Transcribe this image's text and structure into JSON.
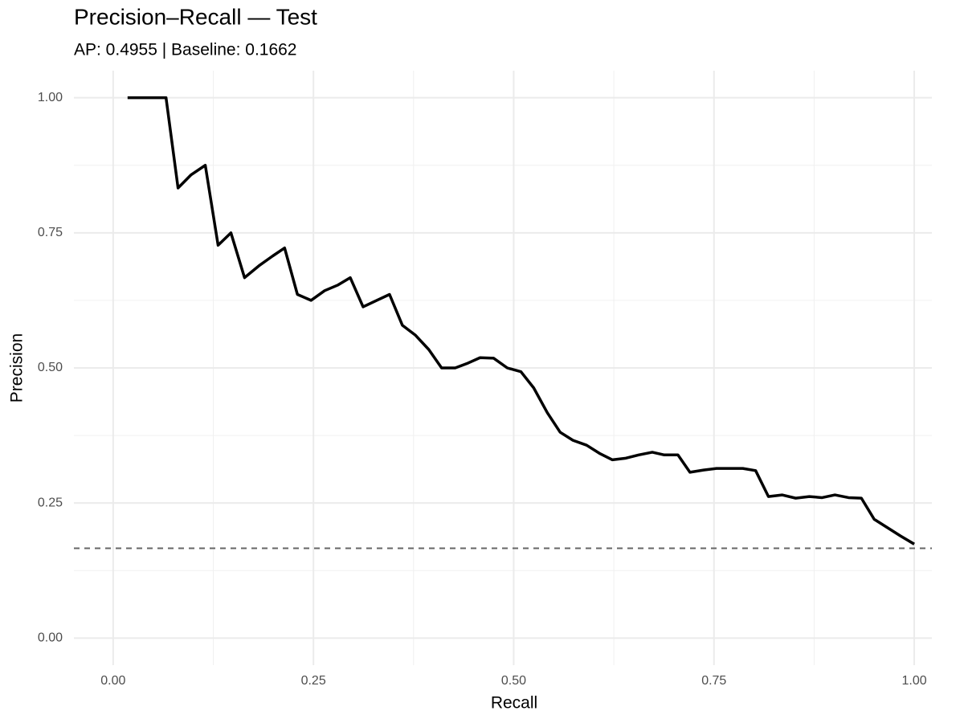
{
  "chart_data": {
    "type": "line",
    "title": "Precision–Recall — Test",
    "subtitle": "AP: 0.4955 | Baseline: 0.1662",
    "x_label": "Recall",
    "y_label": "Precision",
    "x": [
      0.018,
      0.066,
      0.081,
      0.097,
      0.115,
      0.131,
      0.147,
      0.164,
      0.182,
      0.199,
      0.214,
      0.23,
      0.247,
      0.264,
      0.28,
      0.296,
      0.312,
      0.329,
      0.345,
      0.361,
      0.377,
      0.394,
      0.41,
      0.427,
      0.443,
      0.458,
      0.475,
      0.492,
      0.509,
      0.525,
      0.542,
      0.558,
      0.574,
      0.591,
      0.607,
      0.623,
      0.64,
      0.656,
      0.673,
      0.688,
      0.705,
      0.72,
      0.737,
      0.753,
      0.769,
      0.786,
      0.802,
      0.818,
      0.835,
      0.852,
      0.869,
      0.885,
      0.901,
      0.918,
      0.934,
      0.95,
      0.967,
      0.983,
      1.0
    ],
    "values": [
      1.0,
      1.0,
      0.833,
      0.857,
      0.875,
      0.727,
      0.75,
      0.667,
      0.689,
      0.707,
      0.722,
      0.636,
      0.625,
      0.643,
      0.653,
      0.667,
      0.613,
      0.625,
      0.636,
      0.579,
      0.561,
      0.534,
      0.5,
      0.5,
      0.509,
      0.519,
      0.518,
      0.5,
      0.493,
      0.463,
      0.417,
      0.381,
      0.366,
      0.357,
      0.342,
      0.33,
      0.333,
      0.339,
      0.344,
      0.339,
      0.339,
      0.307,
      0.311,
      0.314,
      0.314,
      0.314,
      0.31,
      0.262,
      0.265,
      0.259,
      0.262,
      0.26,
      0.265,
      0.26,
      0.259,
      0.22,
      0.204,
      0.189,
      0.174
    ],
    "color": "#000000",
    "baseline": 0.1662,
    "baseline_color": "#666666",
    "xlim": [
      -0.049,
      1.022
    ],
    "ylim": [
      -0.05,
      1.05
    ],
    "xticks": [
      {
        "value": 0,
        "label": "0.00"
      },
      {
        "value": 0.25,
        "label": "0.25"
      },
      {
        "value": 0.5,
        "label": "0.50"
      },
      {
        "value": 0.75,
        "label": "0.75"
      },
      {
        "value": 1,
        "label": "1.00"
      }
    ],
    "yticks": [
      {
        "value": 0,
        "label": "0.00"
      },
      {
        "value": 0.25,
        "label": "0.25"
      },
      {
        "value": 0.5,
        "label": "0.50"
      },
      {
        "value": 0.75,
        "label": "0.75"
      },
      {
        "value": 1,
        "label": "1.00"
      }
    ],
    "grid": true
  }
}
